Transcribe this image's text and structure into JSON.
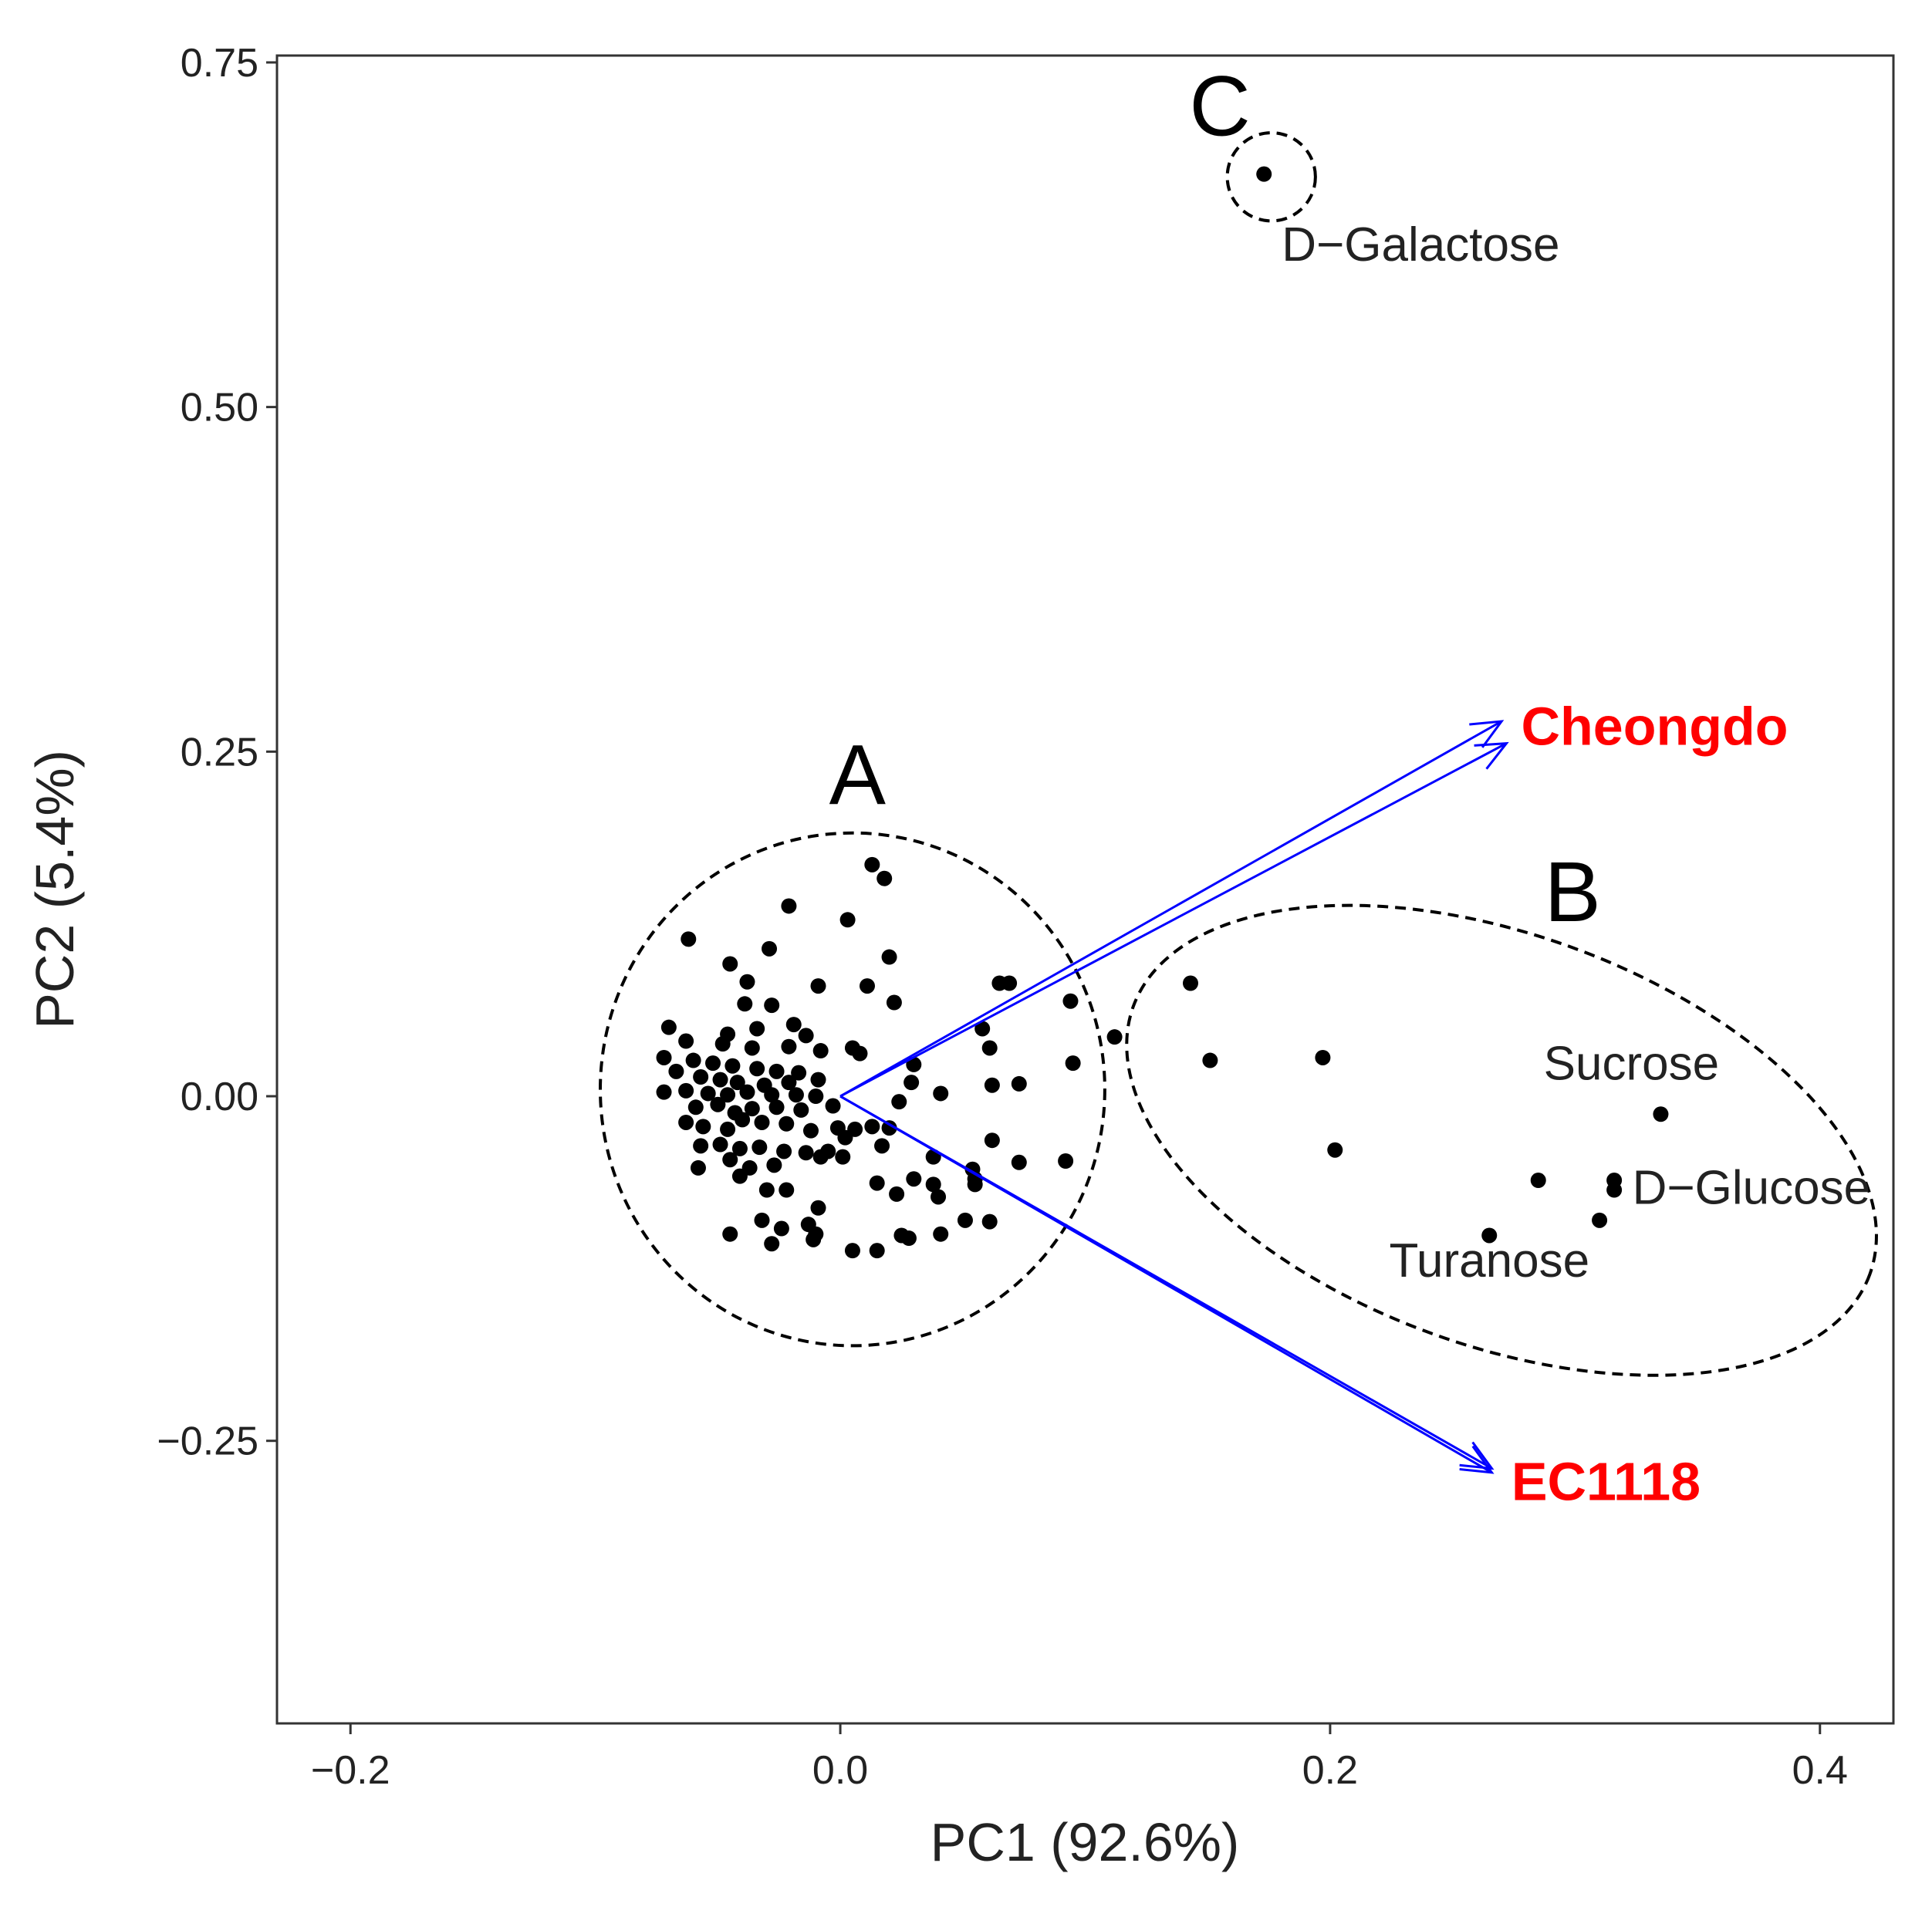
{
  "chart_data": {
    "type": "scatter",
    "title": "",
    "xlabel": "PC1 (92.6%)",
    "ylabel": "PC2 (5.4%)",
    "xlim": [
      -0.23,
      0.43
    ],
    "ylim": [
      -0.455,
      0.755
    ],
    "x_ticks": [
      {
        "value": -0.2,
        "label": "−0.2"
      },
      {
        "value": 0.0,
        "label": "0.0"
      },
      {
        "value": 0.2,
        "label": "0.2"
      },
      {
        "value": 0.4,
        "label": "0.4"
      }
    ],
    "y_ticks": [
      {
        "value": 0.75,
        "label": "0.75"
      },
      {
        "value": 0.5,
        "label": "0.50"
      },
      {
        "value": 0.25,
        "label": "0.25"
      },
      {
        "value": 0.0,
        "label": "0.00"
      },
      {
        "value": -0.25,
        "label": "−0.25"
      }
    ],
    "grid": false,
    "point_color": "#000000",
    "points": [
      [
        0.173,
        0.669
      ],
      [
        0.335,
        -0.013
      ],
      [
        0.316,
        -0.061
      ],
      [
        0.316,
        -0.068
      ],
      [
        0.31,
        -0.09
      ],
      [
        0.285,
        -0.061
      ],
      [
        0.265,
        -0.101
      ],
      [
        0.143,
        0.082
      ],
      [
        0.151,
        0.026
      ],
      [
        0.197,
        0.028
      ],
      [
        0.202,
        -0.039
      ],
      [
        0.112,
        0.043
      ],
      [
        0.013,
        0.168
      ],
      [
        0.018,
        0.158
      ],
      [
        -0.021,
        0.138
      ],
      [
        0.003,
        0.128
      ],
      [
        -0.062,
        0.114
      ],
      [
        -0.029,
        0.107
      ],
      [
        -0.045,
        0.096
      ],
      [
        0.02,
        0.101
      ],
      [
        -0.038,
        0.083
      ],
      [
        -0.009,
        0.08
      ],
      [
        0.065,
        0.082
      ],
      [
        0.069,
        0.082
      ],
      [
        0.011,
        0.08
      ],
      [
        -0.039,
        0.067
      ],
      [
        -0.028,
        0.066
      ],
      [
        0.022,
        0.068
      ],
      [
        0.094,
        0.069
      ],
      [
        -0.07,
        0.05
      ],
      [
        -0.034,
        0.049
      ],
      [
        -0.046,
        0.045
      ],
      [
        -0.019,
        0.052
      ],
      [
        -0.014,
        0.044
      ],
      [
        0.058,
        0.049
      ],
      [
        -0.063,
        0.04
      ],
      [
        -0.048,
        0.038
      ],
      [
        -0.036,
        0.035
      ],
      [
        -0.021,
        0.036
      ],
      [
        -0.008,
        0.033
      ],
      [
        0.008,
        0.031
      ],
      [
        -0.072,
        0.028
      ],
      [
        -0.06,
        0.026
      ],
      [
        -0.052,
        0.024
      ],
      [
        -0.044,
        0.022
      ],
      [
        -0.034,
        0.02
      ],
      [
        -0.026,
        0.018
      ],
      [
        -0.017,
        0.017
      ],
      [
        0.005,
        0.035
      ],
      [
        0.061,
        0.035
      ],
      [
        0.095,
        0.024
      ],
      [
        -0.067,
        0.018
      ],
      [
        -0.057,
        0.014
      ],
      [
        -0.049,
        0.012
      ],
      [
        -0.042,
        0.01
      ],
      [
        -0.031,
        0.008
      ],
      [
        -0.021,
        0.01
      ],
      [
        -0.009,
        0.012
      ],
      [
        0.03,
        0.023
      ],
      [
        0.062,
        0.008
      ],
      [
        0.073,
        0.009
      ],
      [
        -0.072,
        0.003
      ],
      [
        -0.063,
        0.004
      ],
      [
        -0.054,
        0.002
      ],
      [
        -0.046,
        0.001
      ],
      [
        -0.038,
        0.003
      ],
      [
        -0.028,
        0.001
      ],
      [
        -0.018,
        0.001
      ],
      [
        -0.01,
        0.0
      ],
      [
        0.029,
        0.01
      ],
      [
        0.041,
        0.002
      ],
      [
        -0.059,
        -0.008
      ],
      [
        -0.05,
        -0.006
      ],
      [
        -0.043,
        -0.012
      ],
      [
        -0.036,
        -0.009
      ],
      [
        -0.026,
        -0.008
      ],
      [
        -0.016,
        -0.01
      ],
      [
        0.024,
        -0.004
      ],
      [
        -0.063,
        -0.019
      ],
      [
        -0.056,
        -0.022
      ],
      [
        -0.046,
        -0.024
      ],
      [
        -0.04,
        -0.017
      ],
      [
        -0.032,
        -0.019
      ],
      [
        -0.022,
        -0.02
      ],
      [
        -0.012,
        -0.025
      ],
      [
        -0.001,
        -0.023
      ],
      [
        0.006,
        -0.024
      ],
      [
        0.013,
        -0.022
      ],
      [
        0.02,
        -0.023
      ],
      [
        -0.057,
        -0.036
      ],
      [
        -0.049,
        -0.035
      ],
      [
        -0.041,
        -0.038
      ],
      [
        -0.033,
        -0.037
      ],
      [
        -0.023,
        -0.04
      ],
      [
        -0.014,
        -0.041
      ],
      [
        -0.005,
        -0.04
      ],
      [
        0.001,
        -0.044
      ],
      [
        0.017,
        -0.036
      ],
      [
        0.038,
        -0.044
      ],
      [
        0.062,
        -0.032
      ],
      [
        -0.058,
        -0.052
      ],
      [
        -0.045,
        -0.046
      ],
      [
        -0.037,
        -0.052
      ],
      [
        -0.027,
        -0.05
      ],
      [
        -0.008,
        -0.044
      ],
      [
        0.054,
        -0.053
      ],
      [
        0.073,
        -0.048
      ],
      [
        0.092,
        -0.047
      ],
      [
        -0.041,
        -0.058
      ],
      [
        -0.03,
        -0.068
      ],
      [
        -0.022,
        -0.068
      ],
      [
        0.015,
        -0.063
      ],
      [
        0.03,
        -0.06
      ],
      [
        0.038,
        -0.064
      ],
      [
        0.055,
        -0.06
      ],
      [
        0.055,
        -0.064
      ],
      [
        0.023,
        -0.071
      ],
      [
        0.04,
        -0.073
      ],
      [
        -0.009,
        -0.081
      ],
      [
        -0.032,
        -0.09
      ],
      [
        -0.045,
        -0.1
      ],
      [
        -0.024,
        -0.096
      ],
      [
        -0.013,
        -0.093
      ],
      [
        -0.01,
        -0.1
      ],
      [
        0.025,
        -0.101
      ],
      [
        0.028,
        -0.103
      ],
      [
        0.041,
        -0.1
      ],
      [
        -0.028,
        -0.107
      ],
      [
        -0.011,
        -0.104
      ],
      [
        0.051,
        -0.09
      ],
      [
        0.061,
        -0.091
      ],
      [
        0.005,
        -0.112
      ],
      [
        0.015,
        -0.112
      ],
      [
        -0.003,
        -0.007
      ],
      [
        0.002,
        -0.03
      ]
    ],
    "point_labels": [
      {
        "text": "D−Galactose",
        "x": 0.237,
        "y": 0.606
      },
      {
        "text": "Sucrose",
        "x": 0.323,
        "y": 0.012
      },
      {
        "text": "D−Glucose",
        "x": 0.372,
        "y": -0.078
      },
      {
        "text": "Turanose",
        "x": 0.265,
        "y": -0.131
      }
    ],
    "clusters": [
      {
        "label": "A",
        "center": [
          0.005,
          0.005
        ],
        "radii": [
          0.103,
          0.186
        ],
        "label_pos": [
          0.007,
          0.212
        ]
      },
      {
        "label": "B",
        "center": [
          0.27,
          -0.032
        ],
        "radii": [
          0.16,
          0.149
        ],
        "label_pos": [
          0.299,
          0.127
        ],
        "rotation_deg": 20
      },
      {
        "label": "C",
        "center": [
          0.176,
          0.667
        ],
        "radii": [
          0.018,
          0.032
        ],
        "label_pos": [
          0.155,
          0.697
        ]
      }
    ],
    "loadings": [
      {
        "name": "Cheongdo",
        "color": "#ff0000",
        "arrows": [
          [
            0.27,
            0.272
          ],
          [
            0.272,
            0.256
          ]
        ],
        "label_x": 0.278,
        "label_y": 0.255
      },
      {
        "name": "EC1118",
        "color": "#ff0000",
        "arrows": [
          [
            0.266,
            -0.27
          ],
          [
            0.266,
            -0.273
          ]
        ],
        "label_x": 0.274,
        "label_y": -0.293
      }
    ],
    "arrow_color": "#0000ff"
  }
}
